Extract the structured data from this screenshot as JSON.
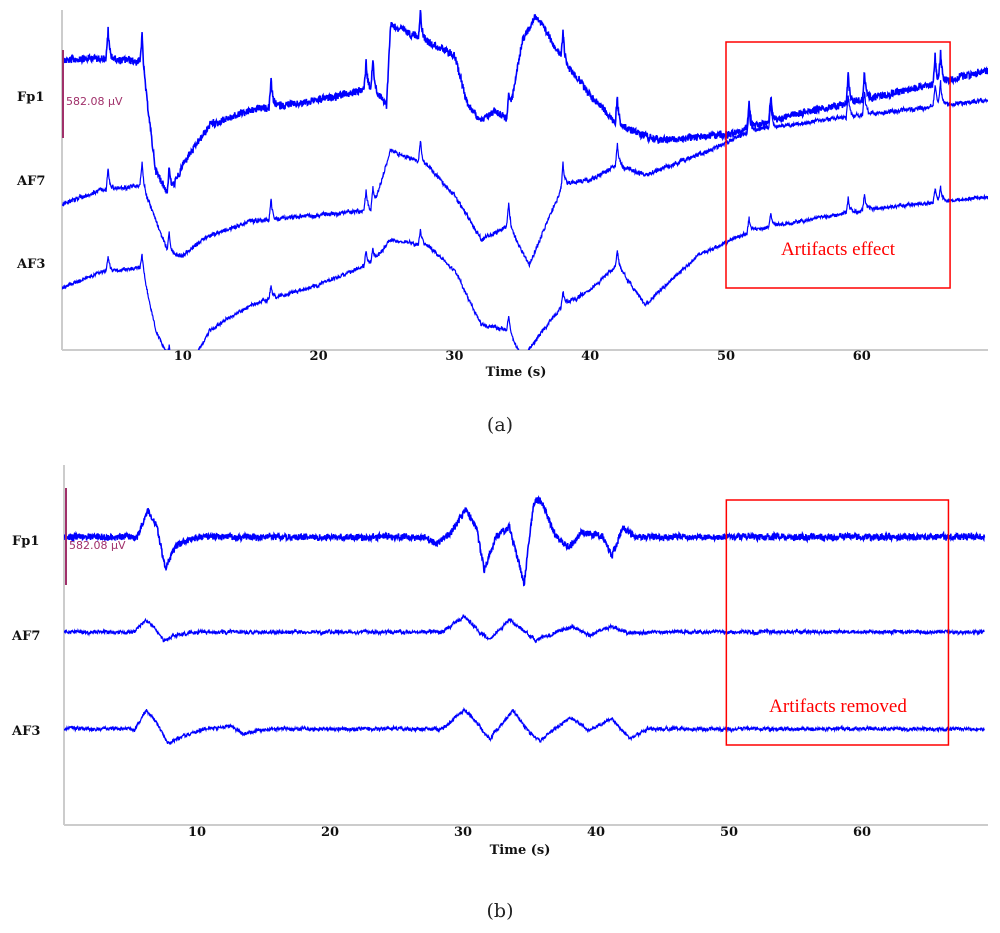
{
  "chart_data": [
    {
      "type": "line",
      "caption": "(a)",
      "xlabel": "Time (s)",
      "x_ticks": [
        10,
        20,
        30,
        40,
        50,
        60
      ],
      "xlim": [
        1.1,
        69.3
      ],
      "scale_bar": "582.08 µV",
      "annotation": {
        "text": "Artifacts effect",
        "t_range": [
          50,
          66.5
        ],
        "color": "#ff0000"
      },
      "trace_color": "#0000ff",
      "spikes_s": [
        4.5,
        7.0,
        9.0,
        16.5,
        23.5,
        24.0,
        27.5,
        34.0,
        38.0,
        42.0,
        51.7,
        53.3,
        59.0,
        60.2,
        65.4,
        65.8
      ],
      "series": [
        {
          "name": "Fp1",
          "points": [
            [
              1.1,
              244
            ],
            [
              4,
              257
            ],
            [
              7,
              231
            ],
            [
              8,
              -483
            ],
            [
              9,
              -647
            ],
            [
              10,
              -449
            ],
            [
              12,
              -185
            ],
            [
              15,
              -86
            ],
            [
              20,
              -20
            ],
            [
              24,
              59
            ],
            [
              25,
              -53
            ],
            [
              25.3,
              475
            ],
            [
              27,
              409
            ],
            [
              30,
              277
            ],
            [
              31,
              -53
            ],
            [
              32,
              -152
            ],
            [
              33,
              -86
            ],
            [
              34,
              -152
            ],
            [
              35,
              376
            ],
            [
              36,
              541
            ],
            [
              38,
              244
            ],
            [
              40,
              13
            ],
            [
              42,
              -185
            ],
            [
              45,
              -284
            ],
            [
              50,
              -251
            ],
            [
              55,
              -119
            ],
            [
              60,
              -20
            ],
            [
              65,
              79
            ],
            [
              69.3,
              178
            ]
          ]
        },
        {
          "name": "AF7",
          "points": [
            [
              1.1,
              -165
            ],
            [
              4,
              -66
            ],
            [
              7,
              -33
            ],
            [
              9,
              -495
            ],
            [
              10,
              -495
            ],
            [
              12,
              -363
            ],
            [
              15,
              -277
            ],
            [
              20,
              -231
            ],
            [
              24,
              -198
            ],
            [
              25.3,
              198
            ],
            [
              28,
              99
            ],
            [
              30,
              -99
            ],
            [
              32,
              -396
            ],
            [
              34,
              -297
            ],
            [
              35.5,
              -561
            ],
            [
              38,
              -33
            ],
            [
              40,
              0
            ],
            [
              42,
              99
            ],
            [
              44,
              33
            ],
            [
              48,
              165
            ],
            [
              52,
              330
            ],
            [
              60,
              429
            ],
            [
              69.3,
              528
            ]
          ]
        },
        {
          "name": "AF3",
          "points": [
            [
              1.1,
              -165
            ],
            [
              4,
              -59
            ],
            [
              7,
              -33
            ],
            [
              8,
              -442
            ],
            [
              9,
              -640
            ],
            [
              10,
              -700
            ],
            [
              11,
              -600
            ],
            [
              12,
              -442
            ],
            [
              15,
              -277
            ],
            [
              20,
              -145
            ],
            [
              24,
              7
            ],
            [
              25.3,
              152
            ],
            [
              28,
              119
            ],
            [
              30,
              -46
            ],
            [
              32,
              -409
            ],
            [
              34,
              -442
            ],
            [
              35,
              -640
            ],
            [
              36,
              -508
            ],
            [
              38,
              -277
            ],
            [
              40,
              -178
            ],
            [
              42,
              -13
            ],
            [
              44,
              -277
            ],
            [
              48,
              53
            ],
            [
              52,
              218
            ],
            [
              60,
              350
            ],
            [
              69.3,
              436
            ]
          ]
        }
      ]
    },
    {
      "type": "line",
      "caption": "(b)",
      "xlabel": "Time (s)",
      "x_ticks": [
        10,
        20,
        30,
        40,
        50,
        60
      ],
      "xlim": [
        0,
        69.2
      ],
      "scale_bar": "582.08 µV",
      "annotation": {
        "text": "Artifacts removed",
        "t_range": [
          49.8,
          66.5
        ],
        "color": "#ff0000"
      },
      "trace_color": "#0000ff",
      "series": [
        {
          "name": "Fp1",
          "points": [
            [
              0.2,
              0
            ],
            [
              5.5,
              0
            ],
            [
              6.3,
              162
            ],
            [
              7,
              60
            ],
            [
              7.6,
              -190
            ],
            [
              8.5,
              -50
            ],
            [
              10,
              0
            ],
            [
              27,
              0
            ],
            [
              28,
              -40
            ],
            [
              29,
              20
            ],
            [
              30.2,
              162
            ],
            [
              31,
              60
            ],
            [
              31.6,
              -200
            ],
            [
              32.5,
              0
            ],
            [
              33.5,
              60
            ],
            [
              34.6,
              -280
            ],
            [
              35.3,
              200
            ],
            [
              35.8,
              230
            ],
            [
              37,
              0
            ],
            [
              38,
              -60
            ],
            [
              39,
              30
            ],
            [
              40.5,
              0
            ],
            [
              41.2,
              -120
            ],
            [
              42,
              60
            ],
            [
              43,
              0
            ],
            [
              69.2,
              0
            ]
          ]
        },
        {
          "name": "AF7",
          "points": [
            [
              0.2,
              0
            ],
            [
              5.3,
              0
            ],
            [
              6.1,
              70
            ],
            [
              6.8,
              30
            ],
            [
              7.5,
              -50
            ],
            [
              8.5,
              -20
            ],
            [
              10,
              0
            ],
            [
              28.5,
              0
            ],
            [
              30.1,
              95
            ],
            [
              31,
              20
            ],
            [
              32,
              -45
            ],
            [
              33.5,
              72
            ],
            [
              34.5,
              10
            ],
            [
              35.5,
              -55
            ],
            [
              37,
              0
            ],
            [
              38.2,
              30
            ],
            [
              39.5,
              -20
            ],
            [
              41.2,
              35
            ],
            [
              42.5,
              -10
            ],
            [
              44,
              0
            ],
            [
              69.2,
              0
            ]
          ]
        },
        {
          "name": "AF3",
          "points": [
            [
              0.2,
              0
            ],
            [
              5.3,
              0
            ],
            [
              6.2,
              110
            ],
            [
              7,
              40
            ],
            [
              7.8,
              -90
            ],
            [
              9,
              -40
            ],
            [
              10.5,
              0
            ],
            [
              12.5,
              20
            ],
            [
              13.5,
              -30
            ],
            [
              15,
              0
            ],
            [
              28.5,
              0
            ],
            [
              30.1,
              120
            ],
            [
              31,
              40
            ],
            [
              32,
              -60
            ],
            [
              33.8,
              110
            ],
            [
              35,
              -20
            ],
            [
              35.8,
              -70
            ],
            [
              38,
              70
            ],
            [
              39.5,
              -10
            ],
            [
              41.2,
              65
            ],
            [
              42.5,
              -60
            ],
            [
              44,
              0
            ],
            [
              69.2,
              0
            ]
          ]
        }
      ]
    }
  ]
}
